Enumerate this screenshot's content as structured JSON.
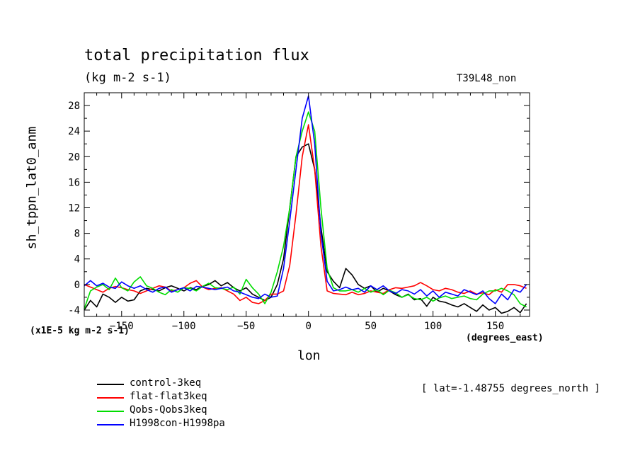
{
  "chart_data": {
    "type": "line",
    "title": "total precipitation flux",
    "subtitle": "(kg m-2 s-1)",
    "run_label": "T39L48_non",
    "ylabel": "sh_tppn_lat0_anm",
    "xlabel": "lon",
    "x_unit_label": "(degrees_east)",
    "y_scale_label": "(x1E-5 kg m-2 s-1)",
    "annotation": "[ lat=-1.48755 degrees_north ]",
    "xlim": [
      -180,
      177.5
    ],
    "ylim": [
      -5,
      30
    ],
    "x_ticks": [
      -150,
      -100,
      -50,
      0,
      50,
      100,
      150
    ],
    "y_ticks": [
      -4,
      0,
      4,
      8,
      12,
      16,
      20,
      24,
      28
    ],
    "grid": false,
    "legend_position": "bottom-left",
    "x": [
      -180,
      -175,
      -170,
      -165,
      -160,
      -155,
      -150,
      -145,
      -140,
      -135,
      -130,
      -125,
      -120,
      -115,
      -110,
      -105,
      -100,
      -95,
      -90,
      -85,
      -80,
      -75,
      -70,
      -65,
      -60,
      -55,
      -50,
      -45,
      -40,
      -35,
      -30,
      -25,
      -20,
      -15,
      -10,
      -5,
      0,
      5,
      10,
      15,
      20,
      25,
      30,
      35,
      40,
      45,
      50,
      55,
      60,
      65,
      70,
      75,
      80,
      85,
      90,
      95,
      100,
      105,
      110,
      115,
      120,
      125,
      130,
      135,
      140,
      145,
      150,
      155,
      160,
      165,
      170,
      175
    ],
    "series": [
      {
        "name": "control-3keq",
        "color": "#000000",
        "values": [
          -4.0,
          -2.5,
          -3.5,
          -1.5,
          -2.0,
          -2.8,
          -2.0,
          -2.6,
          -2.4,
          -1.0,
          -0.6,
          -0.8,
          -1.0,
          -0.5,
          -0.2,
          -0.6,
          -1.0,
          -0.5,
          -0.8,
          -0.3,
          0.0,
          0.6,
          -0.2,
          0.3,
          -0.5,
          -1.0,
          -0.5,
          -1.5,
          -2.0,
          -2.5,
          -2.0,
          0.0,
          4.0,
          12.0,
          20.0,
          21.5,
          22.0,
          18.0,
          9.0,
          2.0,
          0.5,
          -0.5,
          2.5,
          1.5,
          0.0,
          -0.6,
          -0.2,
          -1.2,
          -0.6,
          -1.0,
          -1.6,
          -2.0,
          -1.5,
          -2.4,
          -2.2,
          -3.4,
          -2.0,
          -2.6,
          -2.8,
          -3.2,
          -3.5,
          -3.0,
          -3.6,
          -4.2,
          -3.2,
          -4.0,
          -3.6,
          -4.5,
          -4.2,
          -3.6,
          -4.4,
          -3.0
        ]
      },
      {
        "name": "flat-flat3keq",
        "color": "#ff0000",
        "values": [
          0.0,
          -0.4,
          -0.8,
          -1.2,
          -0.6,
          -0.3,
          -0.5,
          -0.8,
          -1.0,
          -1.4,
          -1.0,
          -0.6,
          -0.2,
          -0.4,
          -1.0,
          -0.8,
          -0.5,
          0.2,
          0.6,
          -0.4,
          -0.8,
          -0.6,
          -0.5,
          -1.0,
          -1.5,
          -2.5,
          -2.0,
          -2.8,
          -3.0,
          -2.5,
          -1.5,
          -1.5,
          -1.0,
          3.0,
          11.0,
          20.0,
          25.0,
          18.0,
          6.0,
          -1.0,
          -1.4,
          -1.5,
          -1.6,
          -1.2,
          -1.6,
          -1.4,
          -1.0,
          -1.2,
          -1.4,
          -0.8,
          -0.5,
          -0.6,
          -0.4,
          -0.2,
          0.3,
          -0.2,
          -0.8,
          -1.0,
          -0.6,
          -0.8,
          -1.2,
          -1.4,
          -1.0,
          -1.5,
          -1.3,
          -1.6,
          -0.8,
          -1.2,
          0.0,
          0.0,
          -0.2,
          -0.6
        ]
      },
      {
        "name": "Qobs-Qobs3keq",
        "color": "#00dd00",
        "values": [
          -3.8,
          -1.0,
          -0.4,
          0.0,
          -0.8,
          1.0,
          -0.5,
          -1.0,
          0.4,
          1.2,
          -0.2,
          -0.6,
          -1.2,
          -1.6,
          -0.8,
          -1.2,
          -0.5,
          -0.6,
          -1.0,
          -0.3,
          0.2,
          -0.5,
          -0.6,
          -0.8,
          -0.4,
          -1.5,
          0.8,
          -0.5,
          -1.5,
          -3.0,
          -1.2,
          2.0,
          6.0,
          12.0,
          20.0,
          24.0,
          27.0,
          24.0,
          12.0,
          2.5,
          -0.5,
          -1.0,
          -1.0,
          -0.8,
          -1.2,
          -0.6,
          -1.2,
          -0.8,
          -1.6,
          -0.9,
          -1.3,
          -2.0,
          -1.6,
          -2.2,
          -2.4,
          -2.0,
          -2.6,
          -2.1,
          -1.8,
          -2.2,
          -2.0,
          -1.8,
          -2.2,
          -2.4,
          -1.5,
          -1.0,
          -1.0,
          -0.6,
          -1.0,
          -1.6,
          -3.0,
          -3.5
        ]
      },
      {
        "name": "H1998con-H1998pa",
        "color": "#0000ff",
        "values": [
          -0.2,
          0.6,
          -0.2,
          0.2,
          -0.4,
          -0.6,
          0.4,
          -0.2,
          -0.6,
          -0.2,
          -0.8,
          -1.2,
          -0.6,
          -0.4,
          -1.2,
          -0.8,
          -0.5,
          -1.0,
          -0.3,
          -0.4,
          -0.6,
          -0.8,
          -0.6,
          -0.4,
          -1.0,
          -1.2,
          -1.6,
          -2.0,
          -2.2,
          -1.5,
          -2.0,
          -1.8,
          2.5,
          10.0,
          18.0,
          26.0,
          29.5,
          22.0,
          8.0,
          0.5,
          -1.0,
          -0.8,
          -0.4,
          -0.8,
          -0.6,
          -1.2,
          -0.2,
          -0.8,
          -0.2,
          -1.0,
          -1.4,
          -0.8,
          -1.0,
          -1.5,
          -0.8,
          -1.8,
          -1.0,
          -2.0,
          -1.2,
          -1.5,
          -1.8,
          -0.8,
          -1.2,
          -1.6,
          -1.0,
          -2.2,
          -3.0,
          -1.5,
          -2.4,
          -0.8,
          -1.2,
          0.0
        ]
      }
    ]
  }
}
